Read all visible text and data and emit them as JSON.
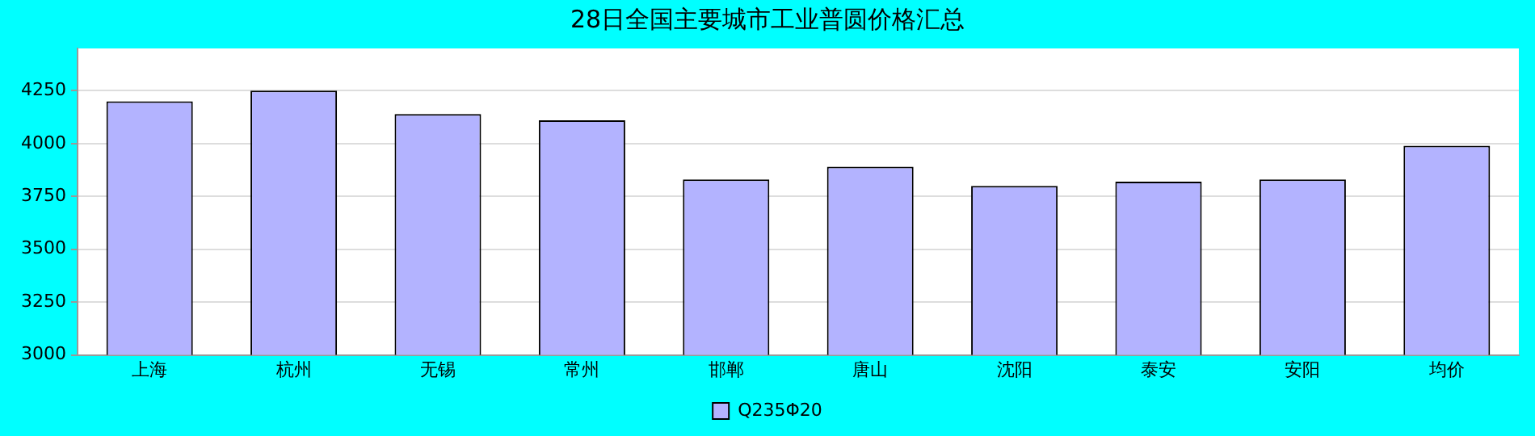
{
  "chart_data": {
    "type": "bar",
    "title": "28日全国主要城市工业普圆价格汇总",
    "categories": [
      "上海",
      "杭州",
      "无锡",
      "常州",
      "邯郸",
      "唐山",
      "沈阳",
      "泰安",
      "安阳",
      "均价"
    ],
    "series": [
      {
        "name": "Q235Φ20",
        "color": "#b3b3ff",
        "values": [
          4200,
          4250,
          4140,
          4110,
          3830,
          3890,
          3800,
          3820,
          3830,
          3990
        ]
      }
    ],
    "ylim": [
      3000,
      4450
    ],
    "yticks": [
      3000,
      3250,
      3500,
      3750,
      4000,
      4250
    ],
    "grid": "y",
    "legend": "bottom"
  }
}
